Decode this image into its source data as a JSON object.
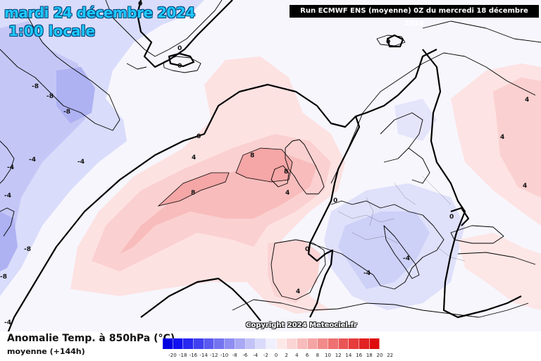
{
  "header": {
    "date_title": "mardi 24 décembre 2024",
    "hour_title": "1:00 locale",
    "run_info": "Run ECMWF ENS (moyenne) 0Z du mercredi 18 décembre 2024"
  },
  "footer": {
    "variable_title": "Anomalie Temp. à 850hPa (°C)",
    "subtitle": "moyenne   (+144h)",
    "copyright": "Copyright 2024 Meteociel.fr"
  },
  "legend": {
    "ticks": [
      "-20",
      "-18",
      "-16",
      "-14",
      "-12",
      "-10",
      "-8",
      "-6",
      "-4",
      "-2",
      "0",
      "2",
      "4",
      "6",
      "8",
      "10",
      "12",
      "14",
      "16",
      "18",
      "20",
      "22"
    ],
    "colors": [
      "#0000e0",
      "#1010f0",
      "#2828f0",
      "#4040f0",
      "#5a5af0",
      "#7474f0",
      "#8e8ef2",
      "#a8a8f4",
      "#c2c2f7",
      "#dadafa",
      "#f0f0fd",
      "#fde8e8",
      "#fbd4d4",
      "#f8bcbc",
      "#f5a4a4",
      "#f28a8a",
      "#ee7070",
      "#ea5656",
      "#e63c3c",
      "#e22222",
      "#de0c0c"
    ]
  },
  "contour_labels": [
    "0",
    "0",
    "0",
    "0",
    "0",
    "0",
    "0",
    "0",
    "-4",
    "-4",
    "-4",
    "-4",
    "-4",
    "-4",
    "-8",
    "-8",
    "-8",
    "-8",
    "-8",
    "4",
    "4",
    "4",
    "4",
    "4",
    "8",
    "8",
    "8",
    "4",
    "-4"
  ]
}
